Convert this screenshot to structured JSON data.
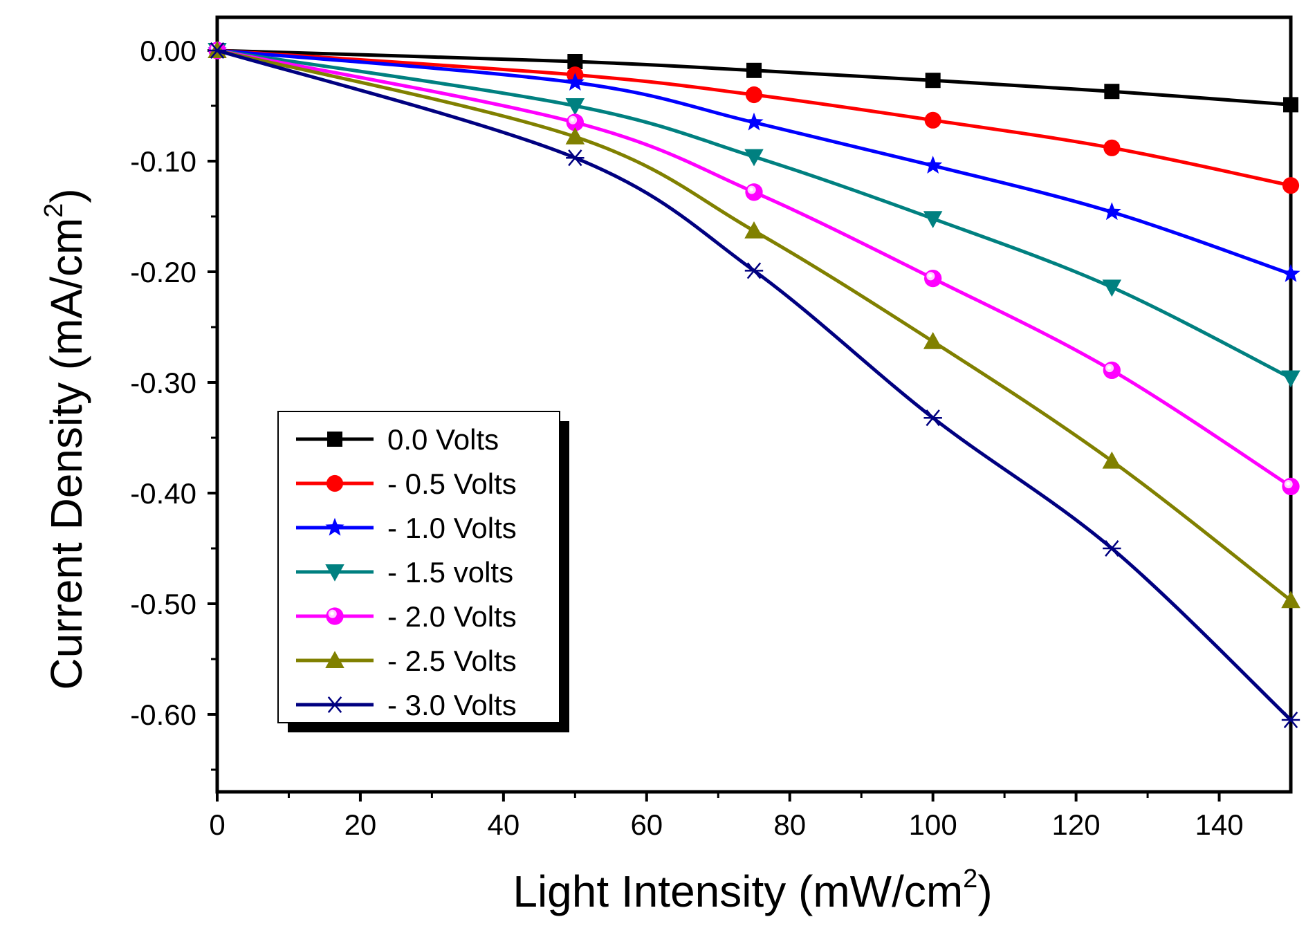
{
  "chart_data": {
    "type": "line",
    "title": "",
    "xlabel": "Light Intensity (mW/cm",
    "xlabel_sup": "2",
    "xlabel_end": ")",
    "ylabel": "Current Density (mA/cm",
    "ylabel_sup": "2",
    "ylabel_end": ")",
    "xlim": [
      0,
      150
    ],
    "ylim": [
      -0.67,
      0.03
    ],
    "xticks": [
      0,
      20,
      40,
      60,
      80,
      100,
      120,
      140
    ],
    "xtick_labels": [
      "0",
      "20",
      "40",
      "60",
      "80",
      "100",
      "120",
      "140"
    ],
    "yticks": [
      0.0,
      -0.1,
      -0.2,
      -0.3,
      -0.4,
      -0.5,
      -0.6
    ],
    "ytick_labels": [
      "0.00",
      "-0.10",
      "-0.20",
      "-0.30",
      "-0.40",
      "-0.50",
      "-0.60"
    ],
    "grid": false,
    "legend_position": "lower-left",
    "x": [
      0,
      50,
      75,
      100,
      125,
      150
    ],
    "series": [
      {
        "name": "0.0 Volts",
        "color": "#000000",
        "marker": "square",
        "values": [
          0.0,
          -0.01,
          -0.018,
          -0.027,
          -0.037,
          -0.049
        ]
      },
      {
        "name": "- 0.5 Volts",
        "color": "#ff0000",
        "marker": "circle",
        "values": [
          0.0,
          -0.022,
          -0.04,
          -0.063,
          -0.088,
          -0.122
        ]
      },
      {
        "name": "- 1.0 Volts",
        "color": "#0000ff",
        "marker": "star",
        "values": [
          0.0,
          -0.029,
          -0.065,
          -0.104,
          -0.146,
          -0.202
        ]
      },
      {
        "name": "- 1.5 volts",
        "color": "#008080",
        "marker": "triangle-down",
        "values": [
          0.0,
          -0.05,
          -0.096,
          -0.152,
          -0.214,
          -0.296
        ]
      },
      {
        "name": "- 2.0 Volts",
        "color": "#ff00ff",
        "marker": "sphere",
        "values": [
          0.0,
          -0.065,
          -0.128,
          -0.206,
          -0.289,
          -0.394
        ]
      },
      {
        "name": "- 2.5 Volts",
        "color": "#808000",
        "marker": "triangle-up",
        "values": [
          0.0,
          -0.078,
          -0.163,
          -0.263,
          -0.371,
          -0.497
        ]
      },
      {
        "name": "- 3.0 Volts",
        "color": "#000080",
        "marker": "asterisk",
        "values": [
          0.0,
          -0.097,
          -0.199,
          -0.332,
          -0.45,
          -0.605
        ]
      }
    ]
  }
}
